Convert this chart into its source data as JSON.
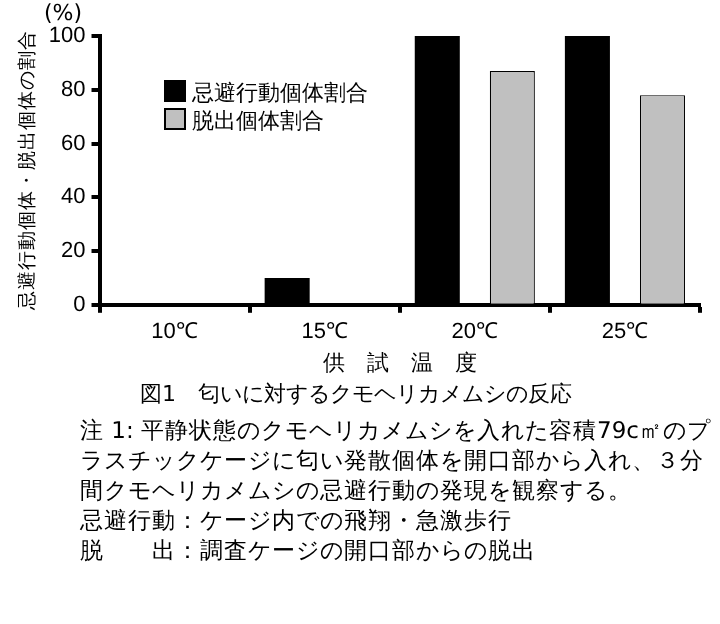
{
  "chart_data": {
    "type": "bar",
    "xlabel": "供　試　温　度",
    "ylabel": "忌避行動個体・脱出個体の割合",
    "title": "図1　匂いに対するクモヘリカメムシの反応",
    "categories": [
      "10℃",
      "15℃",
      "20℃",
      "25℃"
    ],
    "series": [
      {
        "name": "忌避行動個体割合",
        "color": "#000000",
        "values": [
          0,
          10,
          100,
          100
        ]
      },
      {
        "name": "脱出個体割合",
        "color": "#c0c0c0",
        "values": [
          0,
          0,
          87,
          78
        ]
      }
    ],
    "ylim": [
      0,
      100
    ],
    "yticks": [
      0,
      20,
      40,
      60,
      80,
      100
    ],
    "grid": false,
    "legend": "top left",
    "annotations": [
      "(%)",
      "注 1: 平静状態のクモヘリカメムシを入れた容積79c㎡のプラスチックケージに匂い発散個体を開口部から入れ、３分間クモヘリカメムシの忌避行動の発現を観察する。",
      "忌避行動：ケージ内での飛翔・急激歩行",
      "脱　　出：調査ケージの開口部からの脱出"
    ]
  }
}
